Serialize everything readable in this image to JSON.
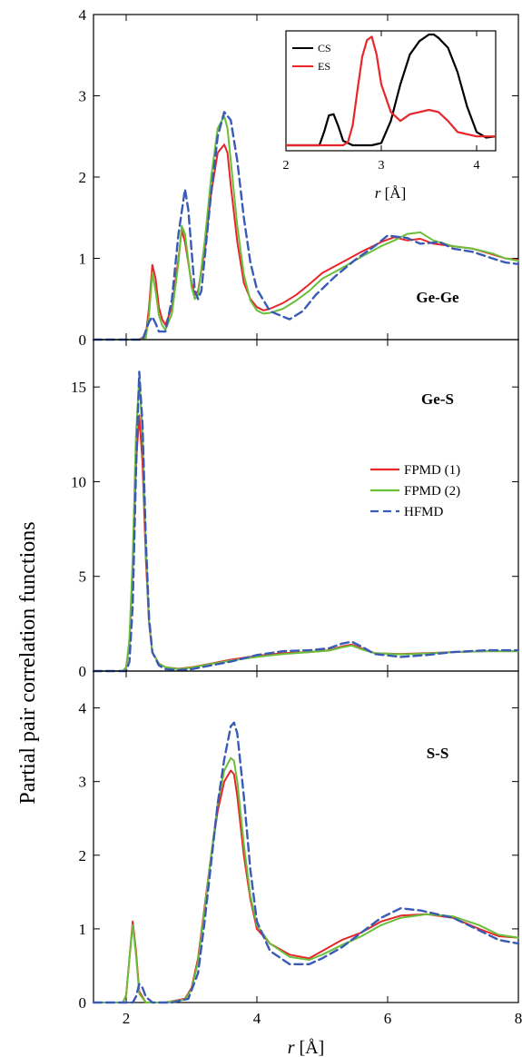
{
  "figure": {
    "ylabel": "Partial pair correlation functions",
    "xlabel_var": "r",
    "xlabel_unit": " [Å]"
  },
  "legend": [
    {
      "label": "FPMD (1)",
      "color": "#e8262a",
      "style": "solid"
    },
    {
      "label": "FPMD (2)",
      "color": "#6abf3a",
      "style": "solid"
    },
    {
      "label": "HFMD",
      "color": "#3a5bb5",
      "style": "dashed"
    }
  ],
  "chart_data": [
    {
      "type": "line",
      "panel_label": "Ge-Ge",
      "xlim": [
        1.5,
        8
      ],
      "ylim": [
        0,
        4
      ],
      "xticks": [
        2,
        4,
        6,
        8
      ],
      "yticks": [
        "0",
        "1",
        "2",
        "3",
        "4"
      ],
      "series": [
        {
          "name": "FPMD (1)",
          "color": "#e8262a",
          "dashed": false,
          "x": [
            1.5,
            2.2,
            2.3,
            2.35,
            2.4,
            2.45,
            2.5,
            2.55,
            2.6,
            2.7,
            2.8,
            2.85,
            2.9,
            3.0,
            3.05,
            3.1,
            3.2,
            3.3,
            3.4,
            3.5,
            3.55,
            3.6,
            3.7,
            3.8,
            3.9,
            4.0,
            4.1,
            4.2,
            4.4,
            4.6,
            4.8,
            5.0,
            5.3,
            5.6,
            5.9,
            6.1,
            6.3,
            6.5,
            6.7,
            7.0,
            7.3,
            7.6,
            7.8,
            8.0
          ],
          "y": [
            0,
            0,
            0.05,
            0.4,
            0.92,
            0.75,
            0.4,
            0.25,
            0.18,
            0.4,
            1.0,
            1.35,
            1.2,
            0.7,
            0.55,
            0.6,
            1.1,
            1.8,
            2.3,
            2.4,
            2.3,
            1.9,
            1.2,
            0.7,
            0.5,
            0.4,
            0.36,
            0.38,
            0.45,
            0.55,
            0.68,
            0.82,
            0.95,
            1.08,
            1.2,
            1.26,
            1.22,
            1.24,
            1.18,
            1.15,
            1.12,
            1.05,
            1.0,
            0.98
          ]
        },
        {
          "name": "FPMD (2)",
          "color": "#6abf3a",
          "dashed": false,
          "x": [
            1.5,
            2.2,
            2.3,
            2.35,
            2.4,
            2.45,
            2.5,
            2.55,
            2.6,
            2.7,
            2.8,
            2.85,
            2.9,
            3.0,
            3.05,
            3.1,
            3.2,
            3.3,
            3.4,
            3.5,
            3.55,
            3.6,
            3.7,
            3.8,
            3.9,
            4.0,
            4.1,
            4.2,
            4.4,
            4.6,
            4.8,
            5.0,
            5.3,
            5.6,
            5.9,
            6.1,
            6.3,
            6.5,
            6.7,
            7.0,
            7.3,
            7.6,
            7.8,
            8.0
          ],
          "y": [
            0,
            0,
            0.02,
            0.3,
            0.82,
            0.6,
            0.3,
            0.18,
            0.12,
            0.32,
            0.95,
            1.4,
            1.3,
            0.65,
            0.5,
            0.55,
            1.2,
            2.0,
            2.6,
            2.75,
            2.6,
            2.2,
            1.4,
            0.8,
            0.48,
            0.36,
            0.32,
            0.33,
            0.38,
            0.48,
            0.6,
            0.75,
            0.88,
            1.02,
            1.15,
            1.22,
            1.3,
            1.32,
            1.22,
            1.15,
            1.12,
            1.06,
            1.0,
            0.97
          ]
        },
        {
          "name": "HFMD",
          "color": "#3a5bb5",
          "dashed": true,
          "x": [
            1.5,
            2.25,
            2.35,
            2.4,
            2.45,
            2.5,
            2.6,
            2.7,
            2.8,
            2.9,
            2.95,
            3.05,
            3.1,
            3.15,
            3.2,
            3.3,
            3.4,
            3.5,
            3.6,
            3.7,
            3.8,
            3.9,
            4.0,
            4.2,
            4.5,
            4.7,
            4.9,
            5.2,
            5.5,
            5.8,
            6.0,
            6.3,
            6.5,
            6.8,
            7.0,
            7.3,
            7.6,
            7.8,
            8.0
          ],
          "y": [
            0,
            0,
            0.22,
            0.28,
            0.2,
            0.1,
            0.1,
            0.5,
            1.3,
            1.85,
            1.6,
            0.6,
            0.5,
            0.6,
            1.0,
            1.8,
            2.5,
            2.8,
            2.7,
            2.2,
            1.5,
            0.95,
            0.62,
            0.35,
            0.25,
            0.35,
            0.55,
            0.78,
            0.98,
            1.15,
            1.28,
            1.25,
            1.18,
            1.2,
            1.12,
            1.08,
            1.0,
            0.95,
            0.93
          ]
        }
      ]
    },
    {
      "type": "line",
      "panel_label": "Ge-S",
      "xlim": [
        1.5,
        8
      ],
      "ylim": [
        0,
        17.5
      ],
      "xticks": [
        2,
        4,
        6,
        8
      ],
      "yticks": [
        "0",
        "5",
        "10",
        "15"
      ],
      "series": [
        {
          "name": "FPMD (1)",
          "color": "#e8262a",
          "dashed": false,
          "x": [
            1.5,
            1.95,
            2.0,
            2.05,
            2.1,
            2.15,
            2.2,
            2.25,
            2.3,
            2.35,
            2.4,
            2.5,
            2.6,
            2.8,
            3.0,
            3.3,
            3.6,
            4.0,
            4.4,
            4.8,
            5.1,
            5.3,
            5.45,
            5.6,
            5.8,
            6.2,
            6.6,
            7.0,
            7.5,
            8.0
          ],
          "y": [
            0,
            0,
            0.2,
            1.5,
            5.5,
            11.0,
            13.5,
            11.0,
            6.0,
            2.5,
            1.0,
            0.4,
            0.2,
            0.12,
            0.2,
            0.4,
            0.6,
            0.8,
            0.95,
            1.0,
            1.1,
            1.3,
            1.4,
            1.2,
            0.95,
            0.9,
            0.95,
            1.0,
            1.05,
            1.05
          ]
        },
        {
          "name": "FPMD (2)",
          "color": "#6abf3a",
          "dashed": false,
          "x": [
            1.5,
            1.95,
            2.0,
            2.05,
            2.1,
            2.15,
            2.2,
            2.25,
            2.3,
            2.35,
            2.4,
            2.5,
            2.6,
            2.8,
            3.0,
            3.3,
            3.6,
            4.0,
            4.4,
            4.8,
            5.1,
            5.3,
            5.45,
            5.6,
            5.8,
            6.2,
            6.6,
            7.0,
            7.5,
            8.0
          ],
          "y": [
            0,
            0,
            0.2,
            1.7,
            6.0,
            12.5,
            15.5,
            12.5,
            6.5,
            2.6,
            1.0,
            0.4,
            0.2,
            0.1,
            0.18,
            0.38,
            0.55,
            0.75,
            0.9,
            1.0,
            1.08,
            1.25,
            1.35,
            1.15,
            0.95,
            0.88,
            0.93,
            1.0,
            1.05,
            1.05
          ]
        },
        {
          "name": "HFMD",
          "color": "#3a5bb5",
          "dashed": true,
          "x": [
            1.5,
            2.0,
            2.05,
            2.1,
            2.15,
            2.2,
            2.25,
            2.3,
            2.35,
            2.4,
            2.5,
            2.6,
            2.8,
            3.0,
            3.3,
            3.6,
            4.0,
            4.4,
            4.8,
            5.1,
            5.3,
            5.45,
            5.6,
            5.8,
            6.2,
            6.6,
            7.0,
            7.5,
            8.0
          ],
          "y": [
            0,
            0,
            0.5,
            3.5,
            10.5,
            15.8,
            13.0,
            7.0,
            2.8,
            1.0,
            0.3,
            0.1,
            0.05,
            0.1,
            0.3,
            0.5,
            0.85,
            1.05,
            1.1,
            1.2,
            1.45,
            1.55,
            1.3,
            0.9,
            0.75,
            0.85,
            1.0,
            1.1,
            1.1
          ]
        }
      ]
    },
    {
      "type": "line",
      "panel_label": "S-S",
      "xlim": [
        1.5,
        8
      ],
      "ylim": [
        0,
        4.5
      ],
      "xticks": [
        2,
        4,
        6,
        8
      ],
      "yticks": [
        "0",
        "1",
        "2",
        "3",
        "4"
      ],
      "series": [
        {
          "name": "FPMD (1)",
          "color": "#e8262a",
          "dashed": false,
          "x": [
            1.5,
            1.95,
            2.0,
            2.05,
            2.1,
            2.15,
            2.2,
            2.3,
            2.6,
            2.9,
            3.0,
            3.1,
            3.2,
            3.3,
            3.4,
            3.5,
            3.6,
            3.65,
            3.7,
            3.8,
            3.9,
            4.0,
            4.2,
            4.5,
            4.8,
            5.0,
            5.3,
            5.6,
            5.9,
            6.2,
            6.6,
            7.0,
            7.4,
            7.7,
            8.0
          ],
          "y": [
            0,
            0,
            0.1,
            0.6,
            1.1,
            0.7,
            0.15,
            0,
            0,
            0.05,
            0.2,
            0.6,
            1.3,
            2.0,
            2.6,
            3.0,
            3.15,
            3.1,
            2.8,
            2.0,
            1.4,
            1.0,
            0.8,
            0.65,
            0.6,
            0.7,
            0.85,
            0.95,
            1.1,
            1.18,
            1.2,
            1.15,
            1.0,
            0.9,
            0.88
          ]
        },
        {
          "name": "FPMD (2)",
          "color": "#6abf3a",
          "dashed": false,
          "x": [
            1.5,
            1.95,
            2.0,
            2.05,
            2.1,
            2.15,
            2.2,
            2.3,
            2.6,
            2.9,
            3.0,
            3.1,
            3.2,
            3.3,
            3.4,
            3.5,
            3.6,
            3.65,
            3.7,
            3.8,
            3.9,
            4.0,
            4.2,
            4.5,
            4.8,
            5.0,
            5.3,
            5.6,
            5.9,
            6.2,
            6.6,
            7.0,
            7.4,
            7.7,
            8.0
          ],
          "y": [
            0,
            0,
            0.1,
            0.6,
            1.05,
            0.65,
            0.12,
            0,
            0,
            0.04,
            0.18,
            0.55,
            1.25,
            2.0,
            2.7,
            3.15,
            3.32,
            3.28,
            3.0,
            2.15,
            1.45,
            1.05,
            0.8,
            0.62,
            0.58,
            0.65,
            0.78,
            0.9,
            1.05,
            1.15,
            1.2,
            1.17,
            1.05,
            0.92,
            0.88
          ]
        },
        {
          "name": "HFMD",
          "color": "#3a5bb5",
          "dashed": true,
          "x": [
            1.5,
            2.1,
            2.15,
            2.2,
            2.25,
            2.3,
            2.4,
            2.7,
            2.95,
            3.1,
            3.2,
            3.3,
            3.4,
            3.5,
            3.6,
            3.65,
            3.7,
            3.8,
            3.9,
            4.0,
            4.2,
            4.5,
            4.8,
            5.0,
            5.3,
            5.6,
            5.9,
            6.2,
            6.5,
            7.0,
            7.4,
            7.7,
            8.0
          ],
          "y": [
            0,
            0,
            0.08,
            0.25,
            0.2,
            0.08,
            0,
            0,
            0.05,
            0.4,
            1.1,
            1.9,
            2.7,
            3.3,
            3.75,
            3.8,
            3.65,
            2.8,
            1.8,
            1.1,
            0.7,
            0.52,
            0.52,
            0.6,
            0.75,
            0.95,
            1.15,
            1.28,
            1.25,
            1.15,
            0.98,
            0.85,
            0.8
          ]
        }
      ]
    },
    {
      "type": "line",
      "role": "inset",
      "xlim": [
        2,
        4.2
      ],
      "ylim": [
        0,
        1
      ],
      "xticks": [
        2,
        3,
        4
      ],
      "yticks": [],
      "legend": [
        {
          "label": "CS",
          "color": "#000000"
        },
        {
          "label": "ES",
          "color": "#e8262a"
        }
      ],
      "series": [
        {
          "name": "CS",
          "color": "#000000",
          "dashed": false,
          "x": [
            2.0,
            2.35,
            2.4,
            2.45,
            2.5,
            2.55,
            2.6,
            2.7,
            2.9,
            3.0,
            3.1,
            3.2,
            3.3,
            3.4,
            3.5,
            3.55,
            3.6,
            3.7,
            3.8,
            3.9,
            4.0,
            4.1,
            4.2
          ],
          "y": [
            0,
            0,
            0.12,
            0.27,
            0.28,
            0.17,
            0.04,
            0,
            0,
            0.02,
            0.22,
            0.55,
            0.82,
            0.94,
            1.0,
            1.0,
            0.97,
            0.88,
            0.66,
            0.35,
            0.12,
            0.07,
            0.08
          ]
        },
        {
          "name": "ES",
          "color": "#e8262a",
          "dashed": false,
          "x": [
            2.0,
            2.6,
            2.65,
            2.7,
            2.75,
            2.8,
            2.85,
            2.9,
            2.95,
            3.0,
            3.1,
            3.2,
            3.3,
            3.4,
            3.5,
            3.6,
            3.7,
            3.8,
            3.9,
            4.0,
            4.1,
            4.2
          ],
          "y": [
            0,
            0,
            0.03,
            0.18,
            0.5,
            0.8,
            0.95,
            0.98,
            0.82,
            0.55,
            0.3,
            0.22,
            0.28,
            0.3,
            0.32,
            0.3,
            0.22,
            0.12,
            0.1,
            0.08,
            0.08,
            0.08
          ]
        }
      ]
    }
  ]
}
